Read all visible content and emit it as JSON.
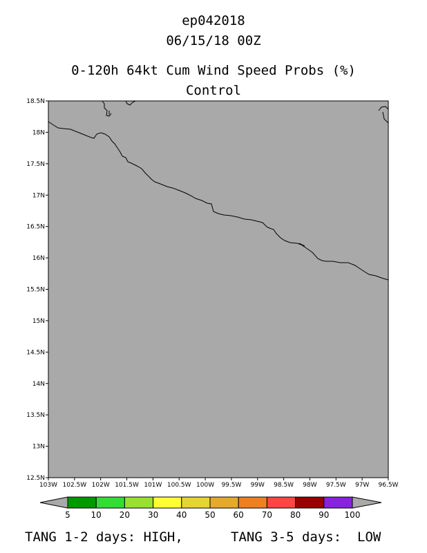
{
  "header": {
    "storm_id": "ep042018",
    "datetime": "06/15/18 00Z",
    "product": "0-120h 64kt Cum Wind Speed Probs (%)",
    "run": "Control"
  },
  "map": {
    "lat_labels": [
      "18.5N",
      "18N",
      "17.5N",
      "17N",
      "16.5N",
      "16N",
      "15.5N",
      "15N",
      "14.5N",
      "14N",
      "13.5N",
      "13N",
      "12.5N"
    ],
    "lon_labels": [
      "103W",
      "102.5W",
      "102W",
      "101.5W",
      "101W",
      "100.5W",
      "100W",
      "99.5W",
      "99W",
      "98.5W",
      "98W",
      "97.5W",
      "97W",
      "96.5W"
    ],
    "lat_range": [
      12.5,
      18.5
    ],
    "lon_range": [
      -103,
      -96.5
    ],
    "land_color": "#a9a9a9"
  },
  "colorbar": {
    "labels": [
      "5",
      "10",
      "20",
      "30",
      "40",
      "50",
      "60",
      "70",
      "80",
      "90",
      "100"
    ],
    "colors": [
      "#009900",
      "#33dd33",
      "#99e033",
      "#ffff33",
      "#e5d533",
      "#e5aa2b",
      "#ee8022",
      "#ff4444",
      "#990000",
      "#8822dd"
    ]
  },
  "footer": {
    "left": "TANG 1-2 days: HIGH,",
    "right": "TANG 3-5 days:  LOW"
  }
}
